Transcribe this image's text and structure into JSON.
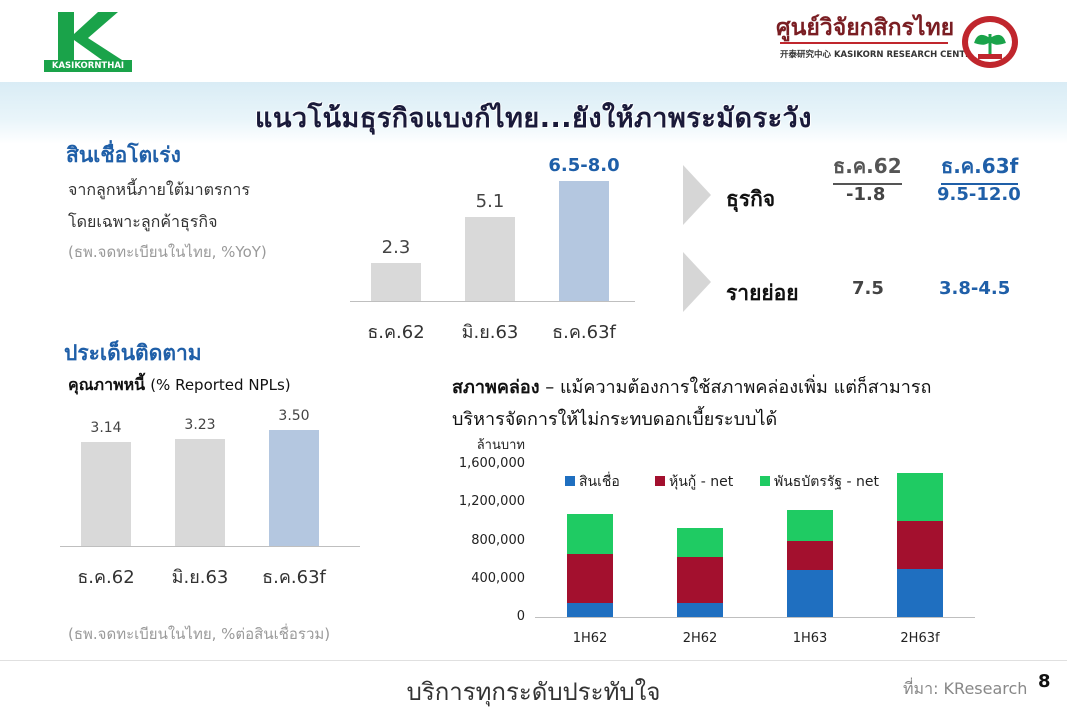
{
  "header": {
    "logo_left_text": "KASIKORNTHAI",
    "logo_right_thai": "ศูนย์วิจัยกสิกรไทย",
    "logo_right_sub": "开泰研究中心 KASIKORN RESEARCH CENTER",
    "colors": {
      "kbank_green": "#1aa34a",
      "kresearch_red": "#c0262d"
    }
  },
  "title": "แนวโน้มธุรกิจแบงก์ไทย...ยังให้ภาพระมัดระวัง",
  "loans": {
    "heading": "สินเชื่อโตเร่ง",
    "desc1": "จากลูกหนี้ภายใต้มาตรการ",
    "desc2": "โดยเฉพาะลูกค้าธุรกิจ",
    "note": "(ธพ.จดทะเบียนในไทย, %YoY)",
    "chart": {
      "categories": [
        "ธ.ค.62",
        "มิ.ย.63",
        "ธ.ค.63f"
      ],
      "values": [
        2.3,
        5.1,
        7.25
      ],
      "labels": [
        "2.3",
        "5.1",
        "6.5-8.0"
      ],
      "colors": [
        "#d9d9d9",
        "#d9d9d9",
        "#b4c7e0"
      ]
    }
  },
  "segments": {
    "col1_header": "ธ.ค.62",
    "col2_header": "ธ.ค.63f",
    "rows": [
      {
        "label": "ธุรกิจ",
        "v1": "-1.8",
        "v2": "9.5-12.0"
      },
      {
        "label": "รายย่อย",
        "v1": "7.5",
        "v2": "3.8-4.5"
      }
    ]
  },
  "watch": {
    "heading": "ประเด็นติดตาม",
    "npl_title_bold": "คุณภาพหนี้",
    "npl_title_rest": "(% Reported NPLs)",
    "note": "(ธพ.จดทะเบียนในไทย, %ต่อสินเชื่อรวม)",
    "chart": {
      "categories": [
        "ธ.ค.62",
        "มิ.ย.63",
        "ธ.ค.63f"
      ],
      "values": [
        3.14,
        3.23,
        3.5
      ],
      "labels": [
        "3.14",
        "3.23",
        "3.50"
      ],
      "colors": [
        "#d9d9d9",
        "#d9d9d9",
        "#b4c7e0"
      ]
    }
  },
  "liquidity": {
    "title_bold": "สภาพคล่อง",
    "title_rest": " – แม้ความต้องการใช้สภาพคล่องเพิ่ม แต่ก็สามารถ",
    "title_line2": "บริหารจัดการให้ไม่กระทบดอกเบี้ยระบบได้"
  },
  "chart_data": {
    "type": "bar",
    "stacked": true,
    "ylabel": "ล้านบาท",
    "categories": [
      "1H62",
      "2H62",
      "1H63",
      "2H63f"
    ],
    "ylim": [
      0,
      1600000
    ],
    "yticks": [
      "1,600,000",
      "1,200,000",
      "800,000",
      "400,000",
      "0"
    ],
    "legend_position": "top",
    "series": [
      {
        "name": "สินเชื่อ",
        "color": "#1f6fc0",
        "values": [
          150000,
          150000,
          490000,
          500000
        ]
      },
      {
        "name": "หุ้นกู้ - net",
        "color": "#a3102e",
        "values": [
          510000,
          480000,
          300000,
          500000
        ]
      },
      {
        "name": "พันธบัตรรัฐ - net",
        "color": "#1fcb63",
        "values": [
          420000,
          300000,
          330000,
          510000
        ]
      }
    ]
  },
  "footer": {
    "tagline": "บริการทุกระดับประทับใจ",
    "source": "ที่มา: KResearch",
    "page": "8"
  }
}
